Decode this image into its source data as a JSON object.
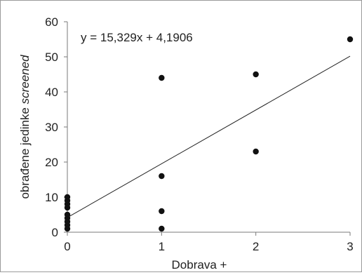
{
  "chart_data": {
    "type": "scatter",
    "title": "",
    "xlabel": "Dobrava +",
    "ylabel_parts": [
      "obrađene jedinke ",
      "screened"
    ],
    "xlim": [
      0,
      3
    ],
    "ylim": [
      0,
      60
    ],
    "xticks": [
      0,
      1,
      2,
      3
    ],
    "yticks": [
      0,
      10,
      20,
      30,
      40,
      50,
      60
    ],
    "grid": false,
    "series": [
      {
        "points": [
          [
            0,
            1
          ],
          [
            0,
            2
          ],
          [
            0,
            3
          ],
          [
            0,
            4
          ],
          [
            0,
            5
          ],
          [
            0,
            7
          ],
          [
            0,
            8
          ],
          [
            0,
            9
          ],
          [
            0,
            10
          ],
          [
            1,
            1
          ],
          [
            1,
            6
          ],
          [
            1,
            16
          ],
          [
            1,
            44
          ],
          [
            2,
            23
          ],
          [
            2,
            45
          ],
          [
            3,
            55
          ]
        ],
        "marker_color": "#111111"
      }
    ],
    "trendline": {
      "slope": 15.329,
      "intercept": 4.1906,
      "equation_label": "y = 15,329x + 4,1906",
      "color": "#222222"
    }
  }
}
